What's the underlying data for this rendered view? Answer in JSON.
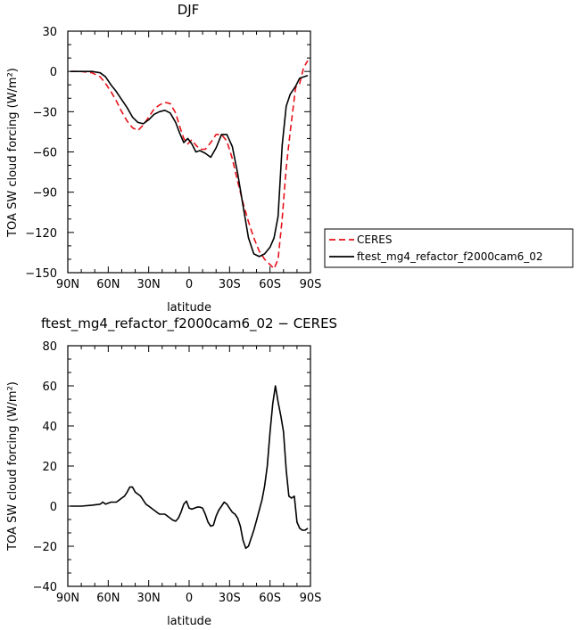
{
  "chart_data": [
    {
      "type": "line",
      "title": "DJF",
      "xlabel": "latitude",
      "ylabel": "TOA SW cloud forcing (W/m²)",
      "xlim": [
        -90,
        90
      ],
      "ylim": [
        -150,
        30
      ],
      "x_ticks": [
        -90,
        -60,
        -30,
        0,
        30,
        60,
        90
      ],
      "x_tick_labels": [
        "90N",
        "60N",
        "30N",
        "0",
        "30S",
        "60S",
        "90S"
      ],
      "y_ticks": [
        -150,
        -120,
        -90,
        -60,
        -30,
        0,
        30
      ],
      "y_tick_labels": [
        "−150",
        "−120",
        "−90",
        "−60",
        "−30",
        "0",
        "30"
      ],
      "legend_position": "right",
      "series": [
        {
          "name": "CERES",
          "color": "#e8111a",
          "dash": "dashed",
          "x": [
            -88,
            -80,
            -72,
            -66,
            -62,
            -58,
            -54,
            -50,
            -46,
            -42,
            -38,
            -34,
            -30,
            -26,
            -22,
            -18,
            -14,
            -10,
            -7,
            -4,
            -1,
            2,
            5,
            8,
            12,
            16,
            20,
            24,
            28,
            32,
            36,
            40,
            44,
            48,
            52,
            56,
            60,
            63,
            66,
            69,
            72,
            75,
            79,
            82,
            85,
            88
          ],
          "y": [
            0,
            0,
            -1,
            -4,
            -9,
            -15,
            -22,
            -30,
            -37,
            -42,
            -44,
            -40,
            -34,
            -28,
            -25,
            -23,
            -24,
            -31,
            -41,
            -50,
            -54,
            -51,
            -55,
            -58,
            -58,
            -53,
            -47,
            -47,
            -52,
            -65,
            -82,
            -98,
            -112,
            -124,
            -134,
            -140,
            -144,
            -147,
            -140,
            -110,
            -72,
            -45,
            -12,
            -9,
            3,
            8
          ]
        },
        {
          "name": "ftest_mg4_refactor_f2000cam6_02",
          "color": "#000000",
          "dash": "solid",
          "x": [
            -88,
            -80,
            -72,
            -66,
            -62,
            -58,
            -54,
            -50,
            -46,
            -42,
            -38,
            -34,
            -30,
            -26,
            -22,
            -18,
            -14,
            -10,
            -7,
            -4,
            -1,
            2,
            5,
            8,
            12,
            16,
            20,
            24,
            28,
            32,
            36,
            40,
            44,
            48,
            52,
            56,
            60,
            63,
            66,
            69,
            72,
            75,
            79,
            82,
            85,
            88
          ],
          "y": [
            0,
            0,
            0,
            -1,
            -4,
            -10,
            -15,
            -21,
            -27,
            -34,
            -38,
            -39,
            -36,
            -32,
            -30,
            -29,
            -31,
            -38,
            -46,
            -53,
            -50,
            -54,
            -60,
            -59,
            -61,
            -64,
            -57,
            -47,
            -47,
            -56,
            -76,
            -100,
            -124,
            -136,
            -138,
            -136,
            -131,
            -124,
            -108,
            -55,
            -26,
            -17,
            -11,
            -5,
            -4,
            -3
          ]
        }
      ]
    },
    {
      "type": "line",
      "title": "ftest_mg4_refactor_f2000cam6_02 − CERES",
      "xlabel": "latitude",
      "ylabel": "TOA SW cloud forcing (W/m²)",
      "xlim": [
        -90,
        90
      ],
      "ylim": [
        -40,
        80
      ],
      "x_ticks": [
        -90,
        -60,
        -30,
        0,
        30,
        60,
        90
      ],
      "x_tick_labels": [
        "90N",
        "60N",
        "30N",
        "0",
        "30S",
        "60S",
        "90S"
      ],
      "y_ticks": [
        -40,
        -20,
        0,
        20,
        40,
        60,
        80
      ],
      "y_tick_labels": [
        "−40",
        "−20",
        "0",
        "20",
        "40",
        "60",
        "80"
      ],
      "series": [
        {
          "name": "",
          "color": "#000000",
          "dash": "solid",
          "x": [
            -88,
            -80,
            -72,
            -66,
            -64,
            -62,
            -60,
            -58,
            -56,
            -54,
            -52,
            -50,
            -48,
            -46,
            -44,
            -42,
            -40,
            -38,
            -36,
            -34,
            -32,
            -30,
            -28,
            -26,
            -24,
            -22,
            -20,
            -18,
            -16,
            -14,
            -12,
            -10,
            -8,
            -6,
            -4,
            -2,
            0,
            2,
            4,
            6,
            8,
            10,
            12,
            14,
            16,
            18,
            20,
            22,
            24,
            26,
            28,
            30,
            32,
            34,
            36,
            38,
            40,
            42,
            44,
            46,
            48,
            50,
            52,
            54,
            56,
            58,
            60,
            62,
            64,
            66,
            68,
            70,
            72,
            74,
            76,
            78,
            80,
            82,
            84,
            86,
            88
          ],
          "y": [
            0,
            0,
            0.5,
            1,
            2,
            1,
            1.5,
            2,
            2,
            2,
            3,
            4,
            5,
            7,
            9.5,
            9.5,
            7,
            6,
            5,
            3,
            1,
            0,
            -1,
            -2,
            -3,
            -4,
            -4,
            -4,
            -5,
            -6,
            -7,
            -7.5,
            -6,
            -3,
            1,
            2.5,
            -1,
            -1.5,
            -1,
            -0.5,
            -0.5,
            -1,
            -4,
            -8,
            -10,
            -9.5,
            -5,
            -2,
            0,
            2,
            1,
            -1,
            -3,
            -4,
            -6,
            -10,
            -17,
            -21,
            -20,
            -16,
            -12,
            -7,
            -2,
            3,
            10,
            20,
            37,
            51,
            60,
            52,
            45,
            37,
            18,
            5,
            4,
            5,
            -8,
            -11,
            -12,
            -12,
            -11
          ]
        }
      ]
    }
  ]
}
